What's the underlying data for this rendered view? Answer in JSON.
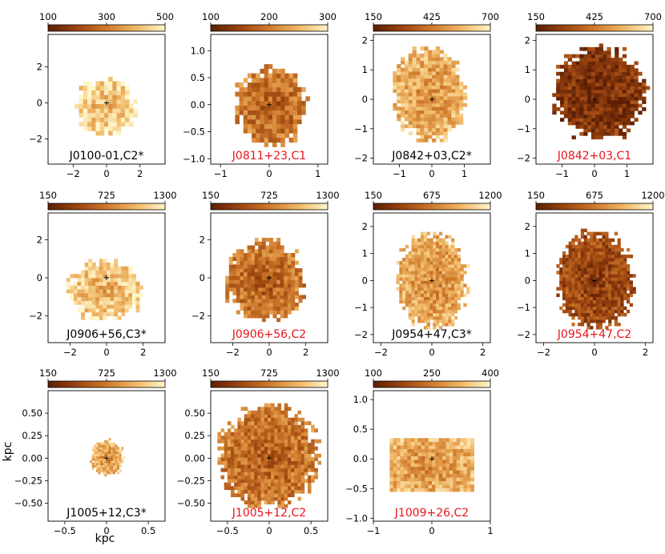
{
  "figure": {
    "xlabel": "kpc",
    "ylabel": "kpc",
    "colors": {
      "label_primary": "#000000",
      "label_secondary": "#e8141c",
      "cmap_low": "#5c1f04",
      "cmap_mid": "#cf7a2c",
      "cmap_high": "#fff6c8"
    }
  },
  "chart_data": [
    {
      "type": "heatmap",
      "label": "J0100-01,C2*",
      "label_style": "primary",
      "colorbar_ticks": [
        "100",
        "300",
        "500"
      ],
      "clim": [
        100,
        500
      ],
      "xlim": [
        -3.5,
        3.5
      ],
      "ylim": [
        -3.4,
        3.8
      ],
      "xticks": [
        -2,
        0,
        2
      ],
      "yticks": [
        -2,
        0,
        2
      ],
      "x_tick_labels_shown": true,
      "shape": "blob",
      "extent": [
        -1.9,
        1.7,
        -1.8,
        1.4
      ],
      "cell": 0.25,
      "fill": 0.72
    },
    {
      "type": "heatmap",
      "label": "J0811+23,C1",
      "label_style": "secondary",
      "colorbar_ticks": [
        "100",
        "200",
        "300"
      ],
      "clim": [
        100,
        300
      ],
      "xlim": [
        -1.2,
        1.2
      ],
      "ylim": [
        -1.1,
        1.3
      ],
      "xticks": [
        -1,
        0,
        1
      ],
      "yticks": [
        -1.0,
        -0.5,
        0.0,
        0.5,
        1.0
      ],
      "x_tick_labels_shown": true,
      "shape": "blob",
      "extent": [
        -0.7,
        0.8,
        -0.78,
        0.68
      ],
      "cell": 0.085,
      "fill": 0.35
    },
    {
      "type": "heatmap",
      "label": "J0842+03,C2*",
      "label_style": "primary",
      "colorbar_ticks": [
        "150",
        "425",
        "700"
      ],
      "clim": [
        150,
        700
      ],
      "xlim": [
        -1.8,
        1.8
      ],
      "ylim": [
        -2.2,
        2.2
      ],
      "xticks": [
        -1,
        0,
        1
      ],
      "yticks": [
        -2,
        -1,
        0,
        1,
        2
      ],
      "x_tick_labels_shown": true,
      "shape": "blob",
      "extent": [
        -1.2,
        1.05,
        -1.45,
        1.75
      ],
      "cell": 0.12,
      "fill": 0.58
    },
    {
      "type": "heatmap",
      "label": "J0842+03,C1",
      "label_style": "secondary",
      "colorbar_ticks": [
        "150",
        "425",
        "700"
      ],
      "clim": [
        150,
        700
      ],
      "xlim": [
        -1.8,
        1.8
      ],
      "ylim": [
        -2.2,
        2.2
      ],
      "xticks": [
        -1,
        0,
        1
      ],
      "yticks": [
        -2,
        -1,
        0,
        1,
        2
      ],
      "x_tick_labels_shown": true,
      "shape": "blob",
      "extent": [
        -1.3,
        1.6,
        -1.35,
        1.8
      ],
      "cell": 0.12,
      "fill": 0.08
    },
    {
      "type": "heatmap",
      "label": "J0906+56,C3*",
      "label_style": "primary",
      "colorbar_ticks": [
        "150",
        "725",
        "1300"
      ],
      "clim": [
        150,
        1300
      ],
      "xlim": [
        -3.2,
        3.2
      ],
      "ylim": [
        -3.4,
        3.4
      ],
      "xticks": [
        -2,
        0,
        2
      ],
      "yticks": [
        -2,
        0,
        2
      ],
      "x_tick_labels_shown": true,
      "shape": "blob",
      "extent": [
        -2.2,
        2.0,
        -2.2,
        0.9
      ],
      "cell": 0.2,
      "fill": 0.7
    },
    {
      "type": "heatmap",
      "label": "J0906+56,C2",
      "label_style": "secondary",
      "colorbar_ticks": [
        "150",
        "725",
        "1300"
      ],
      "clim": [
        150,
        1300
      ],
      "xlim": [
        -3.2,
        3.2
      ],
      "ylim": [
        -3.4,
        3.4
      ],
      "xticks": [
        -2,
        0,
        2
      ],
      "yticks": [
        -2,
        0,
        2
      ],
      "x_tick_labels_shown": true,
      "shape": "blob",
      "extent": [
        -2.4,
        1.9,
        -2.3,
        2.0
      ],
      "cell": 0.2,
      "fill": 0.35
    },
    {
      "type": "heatmap",
      "label": "J0954+47,C3*",
      "label_style": "primary",
      "colorbar_ticks": [
        "150",
        "675",
        "1200"
      ],
      "clim": [
        150,
        1200
      ],
      "xlim": [
        -2.3,
        2.3
      ],
      "ylim": [
        -2.3,
        2.5
      ],
      "xticks": [
        -2,
        0,
        2
      ],
      "yticks": [
        -2,
        -1,
        0,
        1,
        2
      ],
      "x_tick_labels_shown": true,
      "shape": "blob",
      "extent": [
        -1.4,
        1.4,
        -1.8,
        1.8
      ],
      "cell": 0.12,
      "fill": 0.55
    },
    {
      "type": "heatmap",
      "label": "J0954+47,C2",
      "label_style": "secondary",
      "colorbar_ticks": [
        "150",
        "675",
        "1200"
      ],
      "clim": [
        150,
        1200
      ],
      "xlim": [
        -2.3,
        2.3
      ],
      "ylim": [
        -2.3,
        2.5
      ],
      "xticks": [
        -2,
        0,
        2
      ],
      "yticks": [
        -2,
        -1,
        0,
        1,
        2
      ],
      "x_tick_labels_shown": true,
      "shape": "blob",
      "extent": [
        -1.5,
        1.6,
        -1.8,
        1.85
      ],
      "cell": 0.12,
      "fill": 0.2
    },
    {
      "type": "heatmap",
      "label": "J1005+12,C3*",
      "label_style": "primary",
      "colorbar_ticks": [
        "150",
        "725",
        "1300"
      ],
      "clim": [
        150,
        1300
      ],
      "xlim": [
        -0.7,
        0.7
      ],
      "ylim": [
        -0.7,
        0.75
      ],
      "xticks": [
        -0.5,
        0.0,
        0.5
      ],
      "yticks": [
        -0.5,
        -0.25,
        0.0,
        0.25,
        0.5
      ],
      "x_tick_labels_shown": true,
      "shape": "blob",
      "extent": [
        -0.2,
        0.2,
        -0.2,
        0.2
      ],
      "cell": 0.025,
      "fill": 0.58
    },
    {
      "type": "heatmap",
      "label": "J1005+12,C2",
      "label_style": "secondary",
      "colorbar_ticks": [
        "150",
        "725",
        "1300"
      ],
      "clim": [
        150,
        1300
      ],
      "xlim": [
        -0.7,
        0.7
      ],
      "ylim": [
        -0.7,
        0.75
      ],
      "xticks": [
        -0.5,
        0.0,
        0.5
      ],
      "yticks": [
        -0.5,
        -0.25,
        0.0,
        0.25,
        0.5
      ],
      "x_tick_labels_shown": true,
      "shape": "blob",
      "extent": [
        -0.62,
        0.6,
        -0.55,
        0.6
      ],
      "cell": 0.04,
      "fill": 0.35
    },
    {
      "type": "heatmap",
      "label": "J1009+26,C2",
      "label_style": "secondary",
      "colorbar_ticks": [
        "100",
        "250",
        "400"
      ],
      "clim": [
        100,
        400
      ],
      "xlim": [
        -1.0,
        1.0
      ],
      "ylim": [
        -1.05,
        1.15
      ],
      "xticks": [
        -1,
        0,
        1
      ],
      "yticks": [
        -1.0,
        -0.5,
        0.0,
        0.5,
        1.0
      ],
      "x_tick_labels_shown": true,
      "shape": "rect",
      "extent": [
        -0.72,
        0.72,
        -0.55,
        0.3
      ],
      "cell": 0.06,
      "fill": 0.55
    }
  ]
}
